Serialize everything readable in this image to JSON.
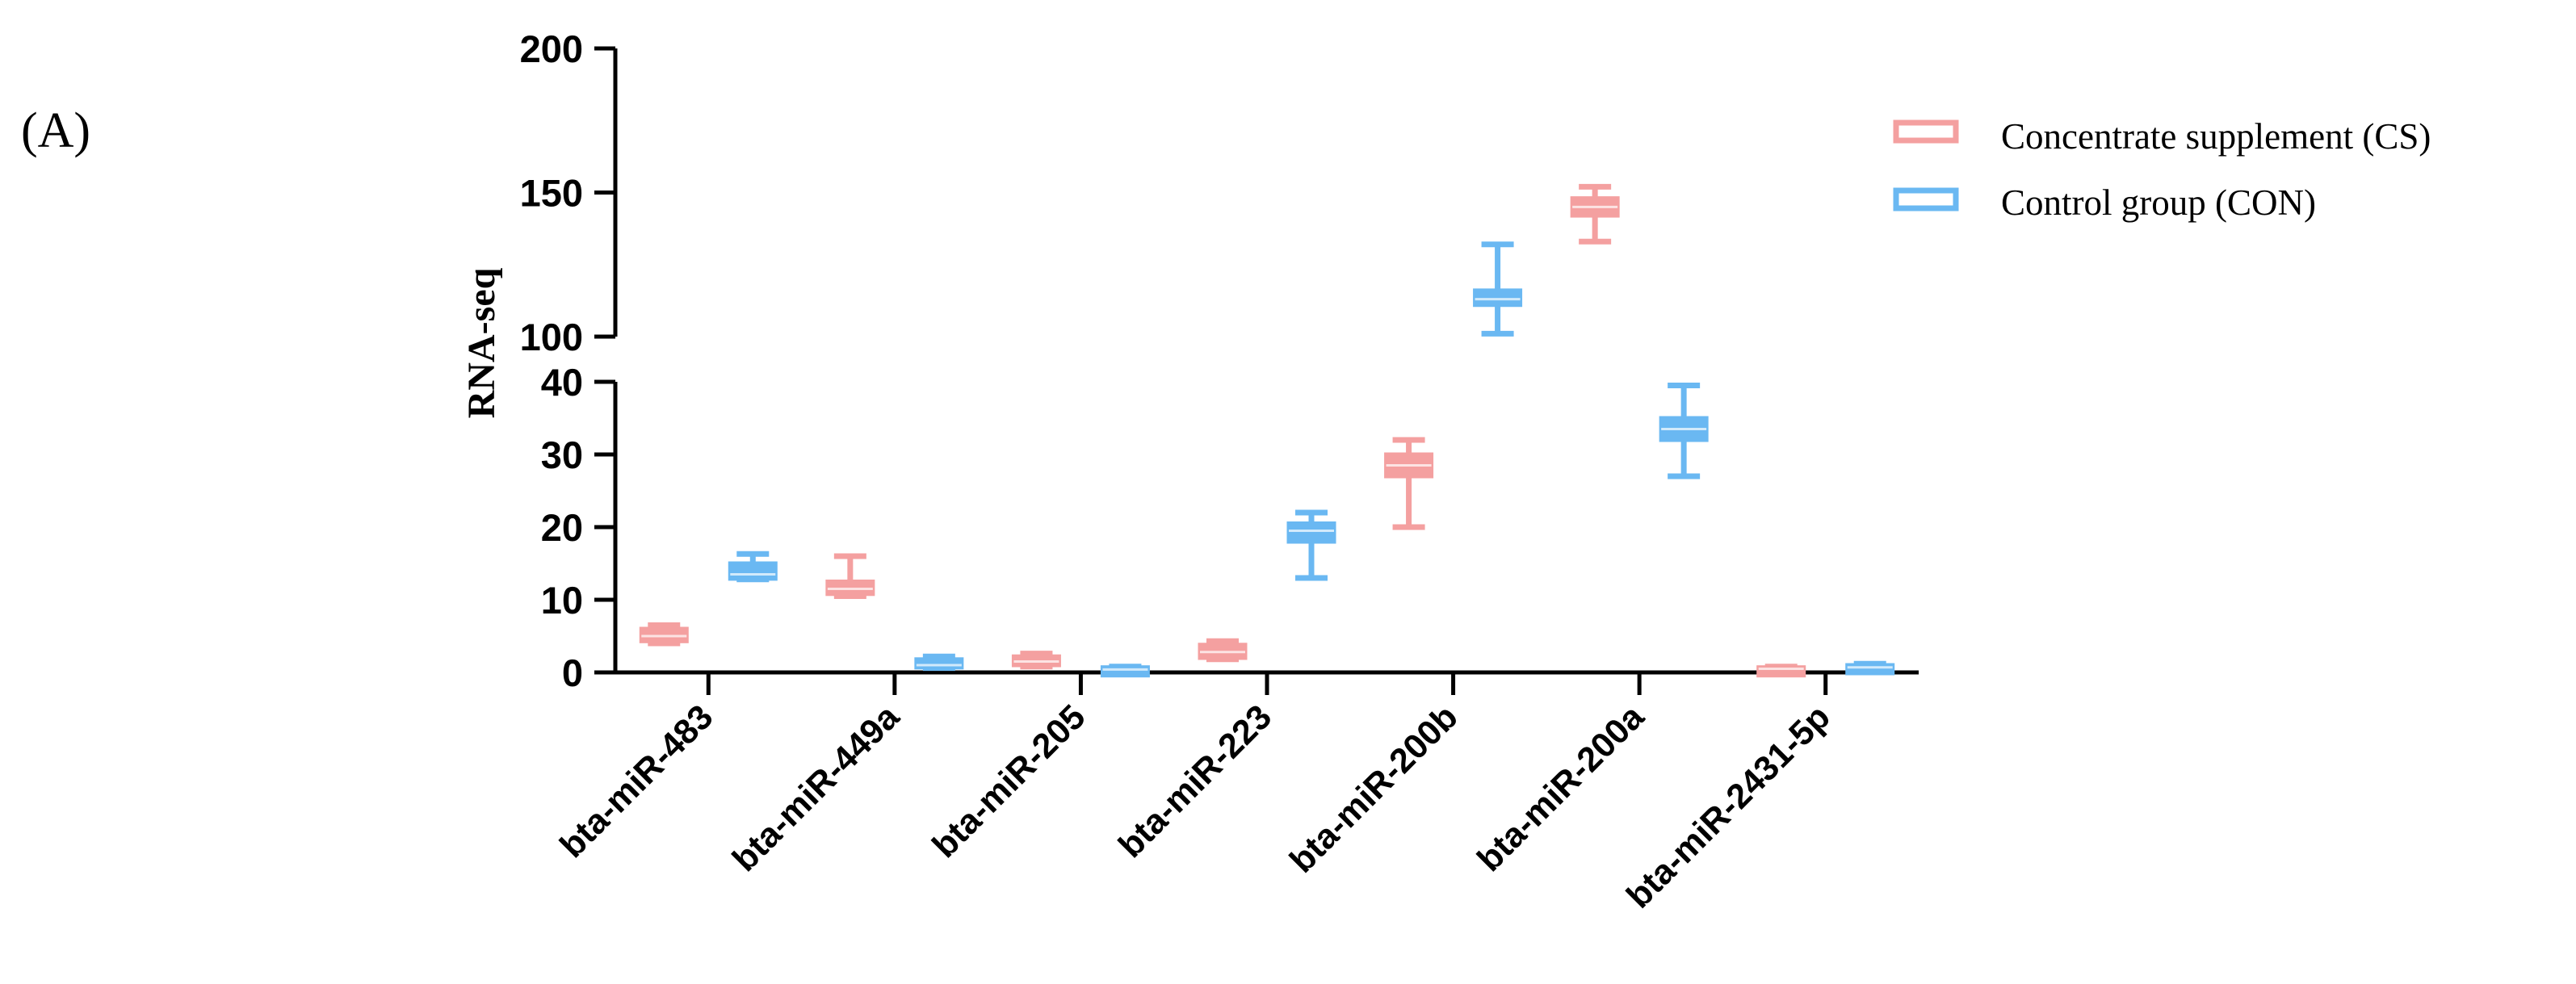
{
  "panel_label": "(A)",
  "chart_data": {
    "type": "box",
    "ylabel": "RNA-seq",
    "xlabel": "",
    "y_axis_break": {
      "lower_segment": [
        0,
        40
      ],
      "upper_segment": [
        100,
        200
      ]
    },
    "y_ticks_lower": [
      "0",
      "10",
      "20",
      "30",
      "40"
    ],
    "y_ticks_upper": [
      "100",
      "150",
      "200"
    ],
    "categories": [
      "bta-miR-483",
      "bta-miR-449a",
      "bta-miR-205",
      "bta-miR-223",
      "bta-miR-200b",
      "bta-miR-200a",
      "bta-miR-2431-5p"
    ],
    "legend_position": "top-right",
    "series": [
      {
        "name": "Concentrate supplement (CS)",
        "color": "#f4a0a0",
        "boxes": [
          {
            "min": 4.0,
            "q1": 4.3,
            "median": 5.0,
            "q3": 6.0,
            "max": 6.5
          },
          {
            "min": 10.5,
            "q1": 10.8,
            "median": 11.5,
            "q3": 12.5,
            "max": 16.0
          },
          {
            "min": 0.8,
            "q1": 1.0,
            "median": 1.5,
            "q3": 2.2,
            "max": 2.6
          },
          {
            "min": 1.8,
            "q1": 2.0,
            "median": 2.8,
            "q3": 3.8,
            "max": 4.3
          },
          {
            "min": 20.0,
            "q1": 27.0,
            "median": 28.5,
            "q3": 30.0,
            "max": 32.0
          },
          {
            "min": 133.0,
            "q1": 142.0,
            "median": 145.0,
            "q3": 148.0,
            "max": 152.0
          },
          {
            "min": 0.2,
            "q1": 0.3,
            "median": 0.5,
            "q3": 0.7,
            "max": 0.8
          }
        ]
      },
      {
        "name": "Control group (CON)",
        "color": "#6ab8f2",
        "boxes": [
          {
            "min": 12.8,
            "q1": 12.9,
            "median": 13.5,
            "q3": 15.0,
            "max": 16.3
          },
          {
            "min": 0.6,
            "q1": 0.7,
            "median": 1.0,
            "q3": 1.8,
            "max": 2.2
          },
          {
            "min": 0.0,
            "q1": 0.1,
            "median": 0.4,
            "q3": 0.7,
            "max": 0.8
          },
          {
            "min": 13.0,
            "q1": 18.0,
            "median": 19.5,
            "q3": 20.5,
            "max": 22.0
          },
          {
            "min": 101.0,
            "q1": 111.0,
            "median": 113.0,
            "q3": 116.0,
            "max": 132.0
          },
          {
            "min": 27.0,
            "q1": 32.0,
            "median": 33.5,
            "q3": 35.0,
            "max": 39.5
          },
          {
            "min": 0.3,
            "q1": 0.4,
            "median": 0.7,
            "q3": 1.0,
            "max": 1.2
          }
        ]
      }
    ]
  }
}
